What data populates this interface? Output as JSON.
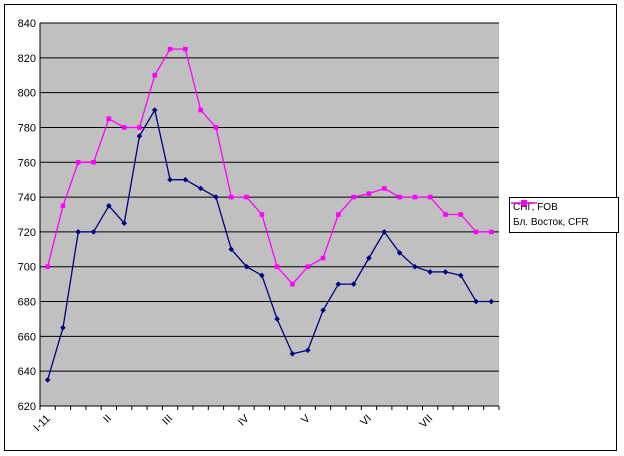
{
  "window": {
    "background": "#FFFFFF",
    "border_color": "#000000"
  },
  "chart_data": {
    "type": "line",
    "title": "",
    "plot_background": "#C0C0C0",
    "gridline_color": "#000000",
    "grid": true,
    "ylim": [
      620,
      840
    ],
    "ytick_step": 20,
    "yticks": [
      620,
      640,
      660,
      680,
      700,
      720,
      740,
      760,
      780,
      800,
      820,
      840
    ],
    "n_points": 30,
    "x_tick_labels": [
      {
        "index": 0,
        "label": "I-11"
      },
      {
        "index": 4,
        "label": "II"
      },
      {
        "index": 8,
        "label": "III"
      },
      {
        "index": 13,
        "label": "IV"
      },
      {
        "index": 17,
        "label": "V"
      },
      {
        "index": 21,
        "label": "VI"
      },
      {
        "index": 25,
        "label": "VII"
      }
    ],
    "legend_position": "right",
    "series": [
      {
        "name": "СНГ, FOB",
        "color": "#000080",
        "marker": "diamond",
        "values": [
          635,
          665,
          720,
          720,
          735,
          725,
          775,
          790,
          750,
          750,
          745,
          740,
          710,
          700,
          695,
          670,
          650,
          652,
          675,
          690,
          690,
          705,
          720,
          708,
          700,
          697,
          697,
          695,
          680,
          680
        ]
      },
      {
        "name": "Бл. Восток, CFR",
        "color": "#FF00FF",
        "marker": "square",
        "values": [
          700,
          735,
          760,
          760,
          785,
          780,
          780,
          810,
          825,
          825,
          790,
          780,
          740,
          740,
          730,
          700,
          690,
          700,
          705,
          730,
          740,
          742,
          745,
          740,
          740,
          740,
          730,
          730,
          720,
          720
        ]
      }
    ]
  }
}
